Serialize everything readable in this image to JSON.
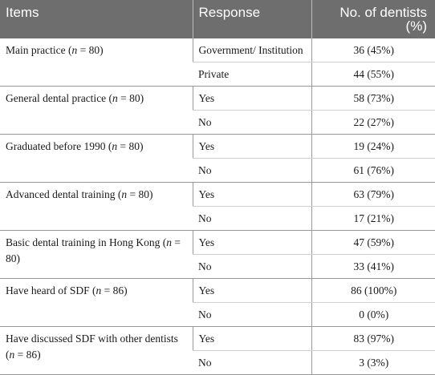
{
  "header": {
    "items": "Items",
    "response": "Response",
    "count": "No. of dentists (%)"
  },
  "groups": [
    {
      "item_text": "Main practice (",
      "n_label": "n",
      "n_value": " = 80)",
      "rows": [
        {
          "response": "Government/ Institution",
          "value": "36 (45%)"
        },
        {
          "response": "Private",
          "value": "44 (55%)"
        }
      ]
    },
    {
      "item_text": "General dental practice (",
      "n_label": "n",
      "n_value": " = 80)",
      "rows": [
        {
          "response": "Yes",
          "value": "58 (73%)"
        },
        {
          "response": "No",
          "value": "22 (27%)"
        }
      ]
    },
    {
      "item_text": "Graduated before 1990 (",
      "n_label": "n",
      "n_value": " = 80)",
      "rows": [
        {
          "response": "Yes",
          "value": "19 (24%)"
        },
        {
          "response": "No",
          "value": "61 (76%)"
        }
      ]
    },
    {
      "item_text": "Advanced dental training (",
      "n_label": "n",
      "n_value": " = 80)",
      "rows": [
        {
          "response": "Yes",
          "value": "63 (79%)"
        },
        {
          "response": "No",
          "value": "17 (21%)"
        }
      ]
    },
    {
      "item_text": "Basic dental training in Hong Kong (",
      "n_label": "n",
      "n_value": " = 80)",
      "rows": [
        {
          "response": "Yes",
          "value": "47 (59%)"
        },
        {
          "response": "No",
          "value": "33 (41%)"
        }
      ]
    },
    {
      "item_text": "Have heard of SDF (",
      "n_label": "n",
      "n_value": " = 86)",
      "rows": [
        {
          "response": "Yes",
          "value": "86 (100%)"
        },
        {
          "response": "No",
          "value": "0 (0%)"
        }
      ]
    },
    {
      "item_text": "Have discussed SDF with other dentists (",
      "n_label": "n",
      "n_value": " = 86)",
      "rows": [
        {
          "response": "Yes",
          "value": "83 (97%)"
        },
        {
          "response": "No",
          "value": "3 (3%)"
        }
      ]
    }
  ]
}
